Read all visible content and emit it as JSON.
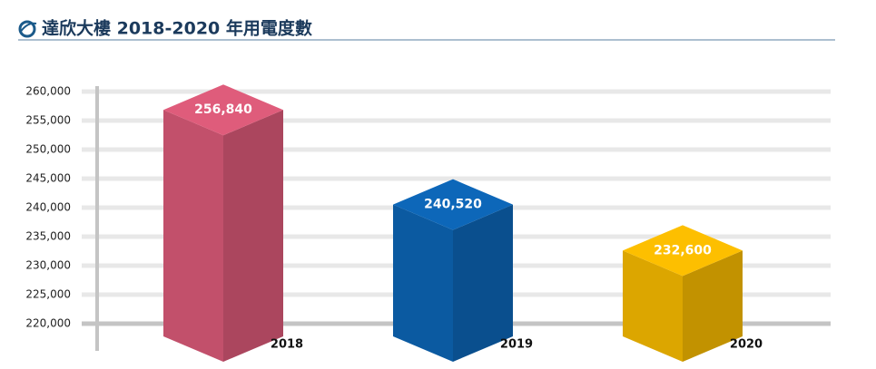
{
  "chart_data": {
    "type": "bar3d",
    "title": "達欣大樓 2018-2020 年用電度數",
    "categories": [
      "2018",
      "2019",
      "2020"
    ],
    "values": [
      256840,
      240520,
      232600
    ],
    "value_labels": [
      "256,840",
      "240,520",
      "232,600"
    ],
    "colors": [
      "#c2506b",
      "#0b5aa1",
      "#dca600"
    ],
    "ylim": [
      220000,
      260000
    ],
    "yticks": [
      {
        "value": 220000,
        "label": "220,000"
      },
      {
        "value": 225000,
        "label": "225,000"
      },
      {
        "value": 230000,
        "label": "230,000"
      },
      {
        "value": 235000,
        "label": "235,000"
      },
      {
        "value": 240000,
        "label": "240,000"
      },
      {
        "value": 245000,
        "label": "245,000"
      },
      {
        "value": 250000,
        "label": "250,000"
      },
      {
        "value": 255000,
        "label": "255,000"
      },
      {
        "value": 260000,
        "label": "260,000"
      }
    ],
    "grid": true
  }
}
